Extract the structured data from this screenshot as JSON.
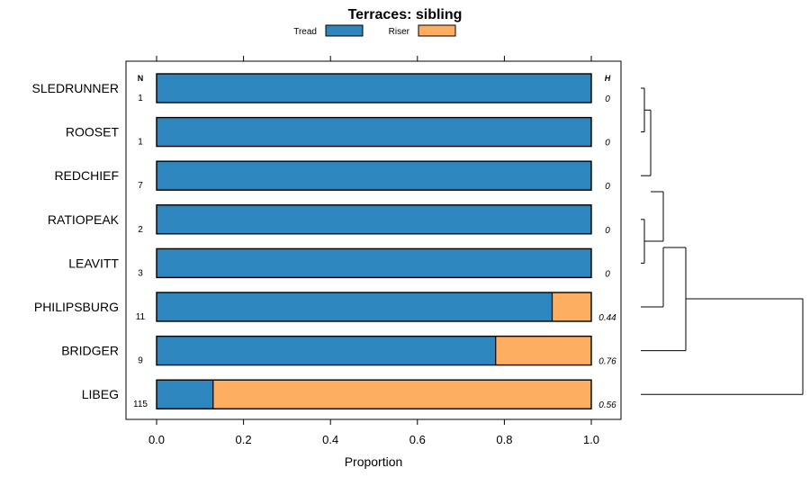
{
  "chart_data": {
    "type": "bar",
    "orientation": "horizontal",
    "stacked": true,
    "title": "Terraces: sibling",
    "xlabel": "Proportion",
    "ylabel": "",
    "xlim": [
      -0.05,
      1.07
    ],
    "xticks": [
      "0.0",
      "0.2",
      "0.4",
      "0.6",
      "0.8",
      "1.0"
    ],
    "xtick_values": [
      0,
      0.2,
      0.4,
      0.6,
      0.8,
      1.0
    ],
    "legend": [
      {
        "name": "Tread",
        "color": "#2E86BE"
      },
      {
        "name": "Riser",
        "color": "#FDAE61"
      }
    ],
    "legend_position": "top",
    "n_header": "N",
    "h_header": "H",
    "categories": [
      "SLEDRUNNER",
      "ROOSET",
      "REDCHIEF",
      "RATIOPEAK",
      "LEAVITT",
      "PHILIPSBURG",
      "BRIDGER",
      "LIBEG"
    ],
    "n_values": [
      "1",
      "1",
      "7",
      "2",
      "3",
      "11",
      "9",
      "115"
    ],
    "h_values": [
      "0",
      "0",
      "0",
      "0",
      "0",
      "0.44",
      "0.76",
      "0.56"
    ],
    "series": [
      {
        "name": "Tread",
        "values": [
          1.0,
          1.0,
          1.0,
          1.0,
          1.0,
          0.91,
          0.78,
          0.13
        ]
      },
      {
        "name": "Riser",
        "values": [
          0.0,
          0.0,
          0.0,
          0.0,
          0.0,
          0.09,
          0.22,
          0.87
        ]
      }
    ],
    "dendrogram": true
  }
}
